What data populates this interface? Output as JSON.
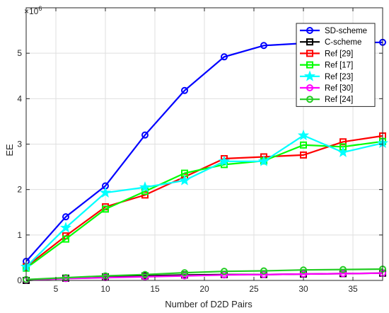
{
  "chart_data": {
    "type": "line",
    "title": "",
    "xlabel": "Number of D2D Pairs",
    "ylabel": "EE",
    "y_multiplier": "×10",
    "y_exponent": "6",
    "xlim": [
      2,
      38
    ],
    "ylim": [
      0,
      6
    ],
    "xticks": [
      5,
      10,
      15,
      20,
      25,
      30,
      35
    ],
    "yticks": [
      0,
      1,
      2,
      3,
      4,
      5
    ],
    "grid": true,
    "legend_position": "top-right",
    "x": [
      2,
      6,
      10,
      14,
      18,
      22,
      26,
      30,
      34,
      38
    ],
    "series": [
      {
        "name": "SD-scheme",
        "color": "#0000ff",
        "marker": "circle",
        "values": [
          0.42,
          1.4,
          2.08,
          3.2,
          4.18,
          4.92,
          5.17,
          5.22,
          5.23,
          5.24
        ]
      },
      {
        "name": "C-scheme",
        "color": "#000000",
        "marker": "square",
        "values": [
          0.0,
          0.05,
          0.08,
          0.1,
          0.12,
          0.13,
          0.13,
          0.14,
          0.15,
          0.16
        ]
      },
      {
        "name": "Ref [29]",
        "color": "#ff0000",
        "marker": "square",
        "values": [
          0.3,
          0.98,
          1.62,
          1.88,
          2.28,
          2.68,
          2.72,
          2.76,
          3.05,
          3.18
        ]
      },
      {
        "name": "Ref [17]",
        "color": "#00ff00",
        "marker": "square",
        "values": [
          0.27,
          0.91,
          1.57,
          1.96,
          2.36,
          2.55,
          2.63,
          2.98,
          2.94,
          3.06
        ]
      },
      {
        "name": "Ref [23]",
        "color": "#00ffff",
        "marker": "star",
        "values": [
          0.3,
          1.16,
          1.93,
          2.05,
          2.2,
          2.62,
          2.62,
          3.19,
          2.82,
          3.02
        ]
      },
      {
        "name": "Ref [30]",
        "color": "#ff00ff",
        "marker": "circle",
        "values": [
          0.01,
          0.04,
          0.06,
          0.08,
          0.1,
          0.12,
          0.13,
          0.14,
          0.15,
          0.16
        ]
      },
      {
        "name": "Ref [24]",
        "color": "#22cc22",
        "marker": "circle",
        "values": [
          0.02,
          0.06,
          0.1,
          0.13,
          0.17,
          0.2,
          0.21,
          0.23,
          0.24,
          0.25
        ]
      }
    ]
  }
}
